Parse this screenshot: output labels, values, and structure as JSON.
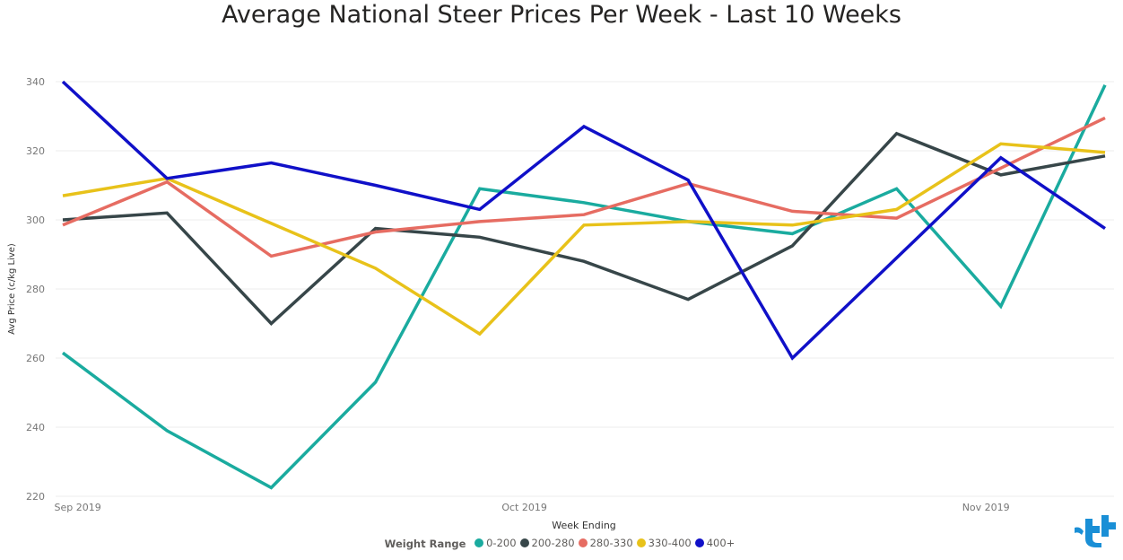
{
  "chart_data": {
    "type": "line",
    "title": "Average National Steer Prices Per Week - Last 10 Weeks",
    "xlabel": "Week Ending",
    "ylabel": "Avg Price (c/kg Live)",
    "ylim": [
      220,
      340
    ],
    "yticks": [
      220,
      240,
      260,
      280,
      300,
      320,
      340
    ],
    "x_tick_labels": [
      "Sep 2019",
      "Oct 2019",
      "Nov 2019"
    ],
    "x": [
      "2019-08-31",
      "2019-09-07",
      "2019-09-14",
      "2019-09-21",
      "2019-09-28",
      "2019-10-05",
      "2019-10-12",
      "2019-10-19",
      "2019-10-26",
      "2019-11-02",
      "2019-11-09"
    ],
    "legend_title": "Weight Range",
    "legend_position": "bottom",
    "grid": true,
    "series": [
      {
        "name": "0-200",
        "color": "#1aab9f",
        "values": [
          261.5,
          239,
          222.5,
          253,
          309,
          305,
          299.5,
          296,
          309,
          275,
          339
        ]
      },
      {
        "name": "200-280",
        "color": "#374649",
        "values": [
          300,
          302,
          270,
          297.5,
          295,
          288,
          277,
          292.5,
          325,
          313,
          318.5
        ]
      },
      {
        "name": "280-330",
        "color": "#e66c62",
        "values": [
          298.5,
          311,
          289.5,
          296.5,
          299.5,
          301.5,
          310.5,
          302.5,
          300.5,
          315,
          329.5
        ]
      },
      {
        "name": "330-400",
        "color": "#e8c21a",
        "values": [
          307,
          312,
          299,
          286,
          267,
          298.5,
          299.5,
          298.5,
          303,
          322,
          319.5
        ]
      },
      {
        "name": "400+",
        "color": "#1010c8",
        "values": [
          340,
          312,
          316.5,
          310,
          303,
          327,
          311.5,
          260,
          289,
          318,
          297.5
        ]
      }
    ]
  }
}
